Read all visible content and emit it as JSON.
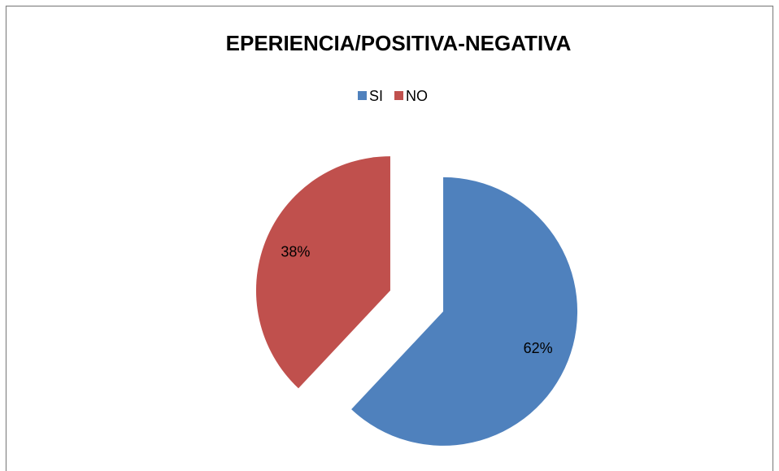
{
  "chart_data": {
    "type": "pie",
    "title": "EPERIENCIA/POSITIVA-NEGATIVA",
    "categories": [
      "SI",
      "NO"
    ],
    "values": [
      62,
      38
    ],
    "value_labels": [
      "62%",
      "38%"
    ],
    "colors": [
      "#4f81bd",
      "#c0504d"
    ],
    "legend": "top"
  }
}
